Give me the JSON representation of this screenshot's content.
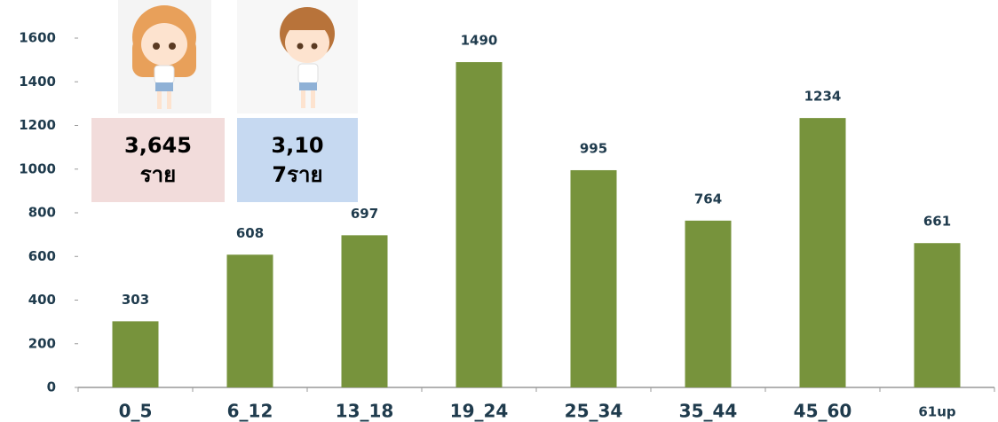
{
  "chart_data": {
    "type": "bar",
    "categories": [
      "0_5",
      "6_12",
      "13_18",
      "19_24",
      "25_34",
      "35_44",
      "45_60",
      "61up"
    ],
    "values": [
      303,
      608,
      697,
      1490,
      995,
      764,
      1234,
      661
    ],
    "color": "#77933c",
    "ylim": [
      0,
      1600
    ],
    "yticks": [
      0,
      200,
      400,
      600,
      800,
      1000,
      1200,
      1400,
      1600
    ],
    "grid": false,
    "annotations": [
      {
        "lines": [
          "3,645",
          "ราย"
        ],
        "color": "#f2dcdb"
      },
      {
        "lines": [
          "3,10",
          "7ราย"
        ],
        "color": "#c6d9f1"
      }
    ]
  }
}
